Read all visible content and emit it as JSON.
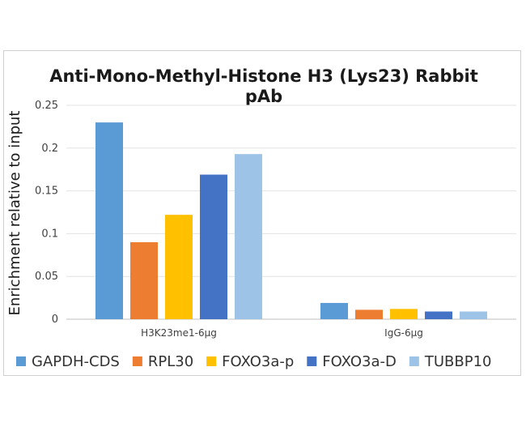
{
  "chart_data": {
    "type": "bar",
    "title_lines": [
      "Anti-Mono-Methyl-Histone H3 (Lys23) Rabbit",
      "pAb"
    ],
    "ylabel": "Enrichment relative to input",
    "xlabel": "",
    "categories": [
      "H3K23me1-6μg",
      "IgG-6μg"
    ],
    "ylim": [
      0,
      0.25
    ],
    "yticks": [
      "0",
      "0.05",
      "0.1",
      "0.15",
      "0.2",
      "0.25"
    ],
    "ytick_values": [
      0,
      0.05,
      0.1,
      0.15,
      0.2,
      0.25
    ],
    "grid": true,
    "legend_position": "bottom",
    "series": [
      {
        "name": "GAPDH-CDS",
        "color": "#5b9bd5",
        "values": [
          0.23,
          0.019
        ]
      },
      {
        "name": "RPL30",
        "color": "#ed7d31",
        "values": [
          0.09,
          0.011
        ]
      },
      {
        "name": "FOXO3a-p",
        "color": "#ffc000",
        "values": [
          0.122,
          0.012
        ]
      },
      {
        "name": "FOXO3a-D",
        "color": "#4472c4",
        "values": [
          0.169,
          0.009
        ]
      },
      {
        "name": "TUBBP10",
        "color": "#9dc3e6",
        "values": [
          0.193,
          0.009
        ]
      }
    ]
  }
}
